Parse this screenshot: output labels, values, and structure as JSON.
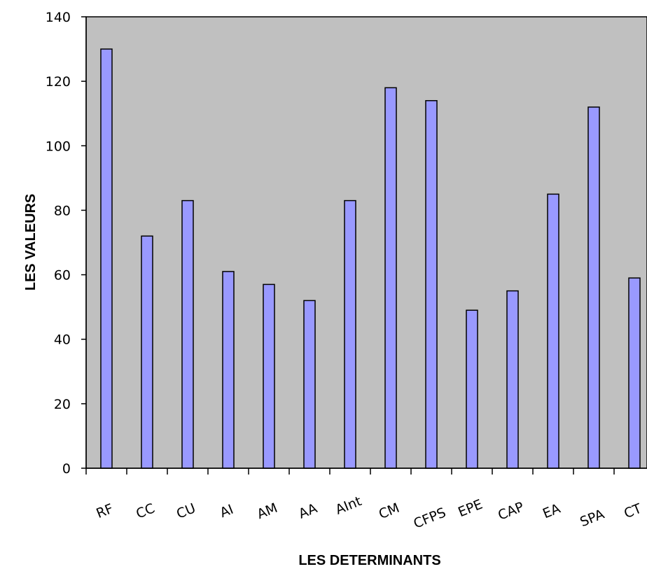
{
  "chart_data": {
    "type": "bar",
    "title": "",
    "xlabel": "LES DETERMINANTS",
    "ylabel": "LES VALEURS",
    "ylim": [
      0,
      140
    ],
    "yticks": [
      "0",
      "20",
      "40",
      "60",
      "80",
      "100",
      "120",
      "140"
    ],
    "categories": [
      "RF",
      "CC",
      "CU",
      "AI",
      "AM",
      "AA",
      "AInt",
      "CM",
      "CFPS",
      "EPE",
      "CAP",
      "EA",
      "SPA",
      "CT"
    ],
    "values": [
      130,
      72,
      83,
      61,
      57,
      52,
      83,
      118,
      114,
      49,
      55,
      85,
      112,
      59
    ],
    "grid": false,
    "legend": "none",
    "colors": {
      "bar_fill": "#9999ff",
      "plot_background": "#c0c0c0",
      "bar_stroke": "#000000"
    }
  }
}
